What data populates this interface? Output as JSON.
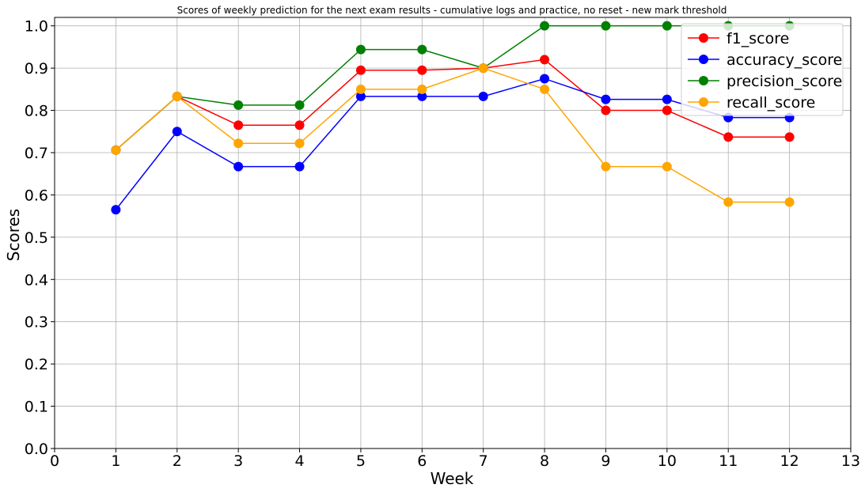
{
  "chart_data": {
    "type": "line",
    "title": "Scores of weekly prediction for the next exam results - cumulative logs and practice, no reset - new mark threshold",
    "xlabel": "Week",
    "ylabel": "Scores",
    "xlim": [
      0,
      13
    ],
    "ylim": [
      0.0,
      1.02
    ],
    "xticks": [
      0,
      1,
      2,
      3,
      4,
      5,
      6,
      7,
      8,
      9,
      10,
      11,
      12,
      13
    ],
    "yticks": [
      0.0,
      0.1,
      0.2,
      0.3,
      0.4,
      0.5,
      0.6,
      0.7,
      0.8,
      0.9,
      1.0
    ],
    "xtick_labels": [
      "0",
      "1",
      "2",
      "3",
      "4",
      "5",
      "6",
      "7",
      "8",
      "9",
      "10",
      "11",
      "12",
      "13"
    ],
    "ytick_labels": [
      "0.0",
      "0.1",
      "0.2",
      "0.3",
      "0.4",
      "0.5",
      "0.6",
      "0.7",
      "0.8",
      "0.9",
      "1.0"
    ],
    "grid": true,
    "legend_position": "top-right",
    "x": [
      1,
      2,
      3,
      4,
      5,
      6,
      7,
      8,
      9,
      10,
      11,
      12
    ],
    "series": [
      {
        "name": "f1_score",
        "color": "#ff0000",
        "values": [
          0.706,
          0.833,
          0.765,
          0.765,
          0.895,
          0.895,
          0.9,
          0.92,
          0.8,
          0.8,
          0.737,
          0.737
        ]
      },
      {
        "name": "accuracy_score",
        "color": "#0000ff",
        "values": [
          0.565,
          0.75,
          0.667,
          0.667,
          0.833,
          0.833,
          0.833,
          0.875,
          0.826,
          0.826,
          0.783,
          0.783
        ]
      },
      {
        "name": "precision_score",
        "color": "#008000",
        "values": [
          0.706,
          0.833,
          0.8125,
          0.8125,
          0.944,
          0.944,
          0.9,
          1.0,
          1.0,
          1.0,
          1.0,
          1.0
        ]
      },
      {
        "name": "recall_score",
        "color": "#ffa500",
        "values": [
          0.706,
          0.833,
          0.722,
          0.722,
          0.85,
          0.85,
          0.9,
          0.85,
          0.667,
          0.667,
          0.583,
          0.583
        ]
      }
    ]
  }
}
